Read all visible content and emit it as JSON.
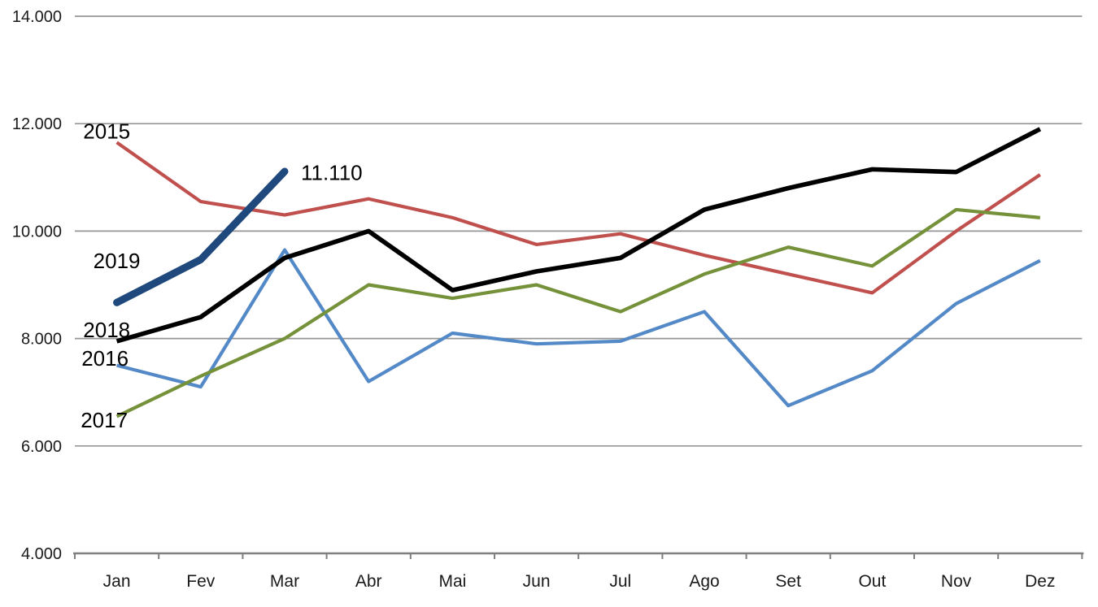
{
  "chart_data": {
    "type": "line",
    "title": "",
    "xlabel": "",
    "ylabel": "",
    "categories": [
      "Jan",
      "Fev",
      "Mar",
      "Abr",
      "Mai",
      "Jun",
      "Jul",
      "Ago",
      "Set",
      "Out",
      "Nov",
      "Dez"
    ],
    "series": [
      {
        "name": "2015",
        "color": "#C0504D",
        "width": 4.2,
        "cap": "butt",
        "values": [
          11650,
          10550,
          10300,
          10600,
          10250,
          9750,
          9950,
          9550,
          9200,
          8850,
          10000,
          11050
        ]
      },
      {
        "name": "2016",
        "color": "#5489C8",
        "width": 4.2,
        "cap": "butt",
        "values": [
          7500,
          7100,
          9650,
          7200,
          8100,
          7900,
          7950,
          8500,
          6750,
          7400,
          8650,
          9450
        ]
      },
      {
        "name": "2017",
        "color": "#75913A",
        "width": 4.2,
        "cap": "butt",
        "values": [
          6550,
          7300,
          8000,
          9000,
          8750,
          9000,
          8500,
          9200,
          9700,
          9350,
          10400,
          10250
        ]
      },
      {
        "name": "2018",
        "color": "#000000",
        "width": 5.6,
        "cap": "butt",
        "values": [
          7950,
          8400,
          9500,
          10000,
          8900,
          9250,
          9500,
          10400,
          10800,
          11150,
          11100,
          11900
        ]
      },
      {
        "name": "2019",
        "color": "#1F497D",
        "width": 9,
        "cap": "round",
        "values": [
          8670,
          9470,
          11110,
          null,
          null,
          null,
          null,
          null,
          null,
          null,
          null,
          null
        ]
      }
    ],
    "ylim": [
      4000,
      14000
    ],
    "ytick_step": 2000,
    "ytick_labels": [
      "4.000",
      "6.000",
      "8.000",
      "10.000",
      "12.000",
      "14.000"
    ],
    "grid": true,
    "legend_position": "inline-labels",
    "annotations": [
      {
        "text": "2015",
        "mi": -0.12,
        "v": 11860,
        "role": "series-label"
      },
      {
        "text": "2019",
        "mi": 0.0,
        "v": 9450,
        "role": "series-label"
      },
      {
        "text": "2018",
        "mi": -0.12,
        "v": 8160,
        "role": "series-label"
      },
      {
        "text": "2016",
        "mi": -0.14,
        "v": 7630,
        "role": "series-label"
      },
      {
        "text": "2017",
        "mi": -0.15,
        "v": 6480,
        "role": "series-label"
      },
      {
        "text": "11.110",
        "mi": 2.56,
        "v": 11090,
        "role": "point-value-label"
      }
    ],
    "axis_color": "#7F7F7F",
    "gridline_color": "#969696"
  }
}
